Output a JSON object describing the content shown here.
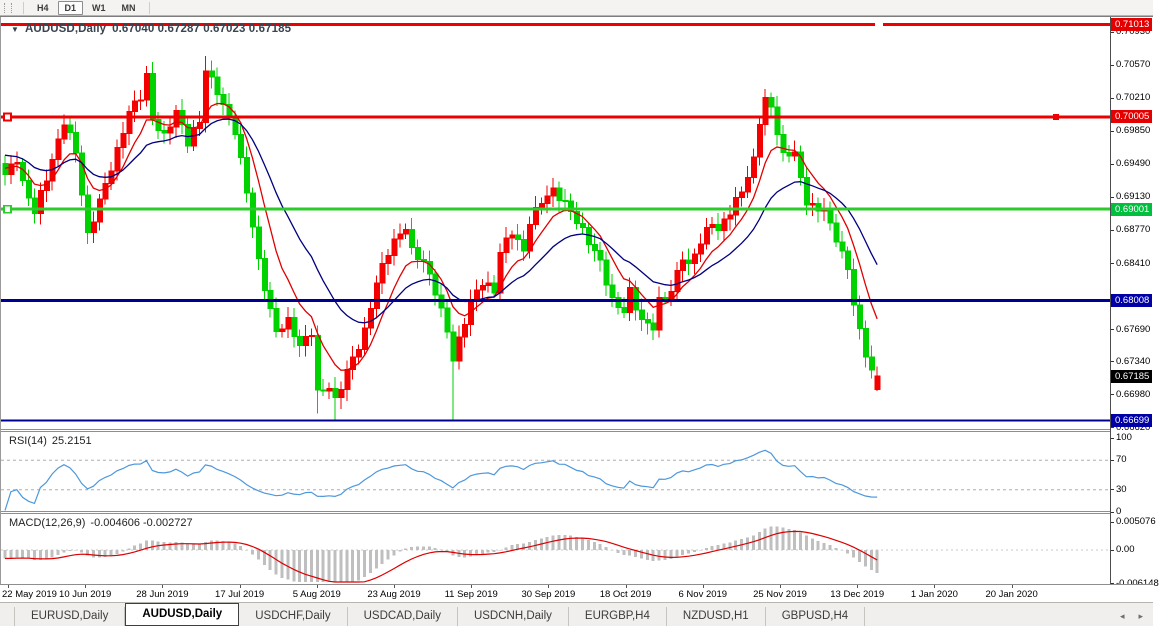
{
  "toolbar": {
    "buttons": [
      {
        "label": "H4",
        "active": false
      },
      {
        "label": "D1",
        "active": true
      },
      {
        "label": "W1",
        "active": false
      },
      {
        "label": "MN",
        "active": false
      }
    ]
  },
  "chart": {
    "dropdown_icon": "▼",
    "symbol_title": "AUDUSD,Daily",
    "ohlc_text": "0.67040 0.67287 0.67023 0.67185"
  },
  "chart_data": {
    "type": "candlestick",
    "symbol": "AUDUSD",
    "timeframe": "Daily",
    "ohlc_display": {
      "open": "0.67040",
      "high": "0.67287",
      "low": "0.67023",
      "close": "0.67185"
    },
    "colors": {
      "bull": "#f40000",
      "bear": "#00d200",
      "ma_fast": "#e00000",
      "ma_slow": "#000080",
      "hline_red": "#ee0000",
      "hline_green": "#2bcb2b",
      "hline_navy": "#000090",
      "badge_red": "#e40000",
      "badge_green": "#00be3e",
      "badge_navy": "#0000a6",
      "badge_black": "#000000",
      "rsi_line": "#4d97dc",
      "rsi_levels": "#adadad",
      "macd_hist": "#bfbfbf",
      "macd_signal": "#dd0000"
    },
    "price_axis_ticks": [
      "0.70930",
      "0.70570",
      "0.70210",
      "0.69850",
      "0.69490",
      "0.69130",
      "0.68770",
      "0.68410",
      "0.67690",
      "0.67340",
      "0.66980",
      "0.66620"
    ],
    "price_badges": [
      {
        "text": "0.71013",
        "price": 0.71013,
        "color": "badge_red"
      },
      {
        "text": "0.70005",
        "price": 0.70005,
        "color": "badge_red"
      },
      {
        "text": "0.69001",
        "price": 0.69001,
        "color": "badge_green"
      },
      {
        "text": "0.68008",
        "price": 0.68008,
        "color": "badge_navy"
      },
      {
        "text": "0.67185",
        "price": 0.67185,
        "color": "badge_black"
      },
      {
        "text": "0.66699",
        "price": 0.66699,
        "color": "badge_navy"
      }
    ],
    "horizontal_lines": [
      {
        "name": "resistance-0.71013",
        "price": 0.71013,
        "color": "hline_red",
        "width": 3,
        "left_handle": false,
        "mid_handle": true
      },
      {
        "name": "resistance-0.70005",
        "price": 0.70005,
        "color": "hline_red",
        "width": 3,
        "left_handle": true,
        "right_handle": true
      },
      {
        "name": "level-0.69001",
        "price": 0.69001,
        "color": "hline_green",
        "width": 3,
        "left_handle": true
      },
      {
        "name": "support-0.68008",
        "price": 0.68008,
        "color": "hline_navy",
        "width": 3,
        "left_handle": false
      },
      {
        "name": "support-0.66699",
        "price": 0.66699,
        "color": "hline_navy",
        "width": 2,
        "left_handle": false
      }
    ],
    "x_axis_labels": [
      "22 May 2019",
      "10 Jun 2019",
      "28 Jun 2019",
      "17 Jul 2019",
      "5 Aug 2019",
      "23 Aug 2019",
      "11 Sep 2019",
      "30 Sep 2019",
      "18 Oct 2019",
      "6 Nov 2019",
      "25 Nov 2019",
      "13 Dec 2019",
      "1 Jan 2020",
      "20 Jan 2020"
    ],
    "candles": {
      "count": 149,
      "close_anchors": [
        [
          0,
          0.6938
        ],
        [
          2,
          0.6955
        ],
        [
          3,
          0.6928
        ],
        [
          5,
          0.6898
        ],
        [
          8,
          0.6953
        ],
        [
          10,
          0.6996
        ],
        [
          12,
          0.6963
        ],
        [
          14,
          0.6871
        ],
        [
          16,
          0.6909
        ],
        [
          19,
          0.6963
        ],
        [
          21,
          0.7007
        ],
        [
          23,
          0.7023
        ],
        [
          24,
          0.7045
        ],
        [
          25,
          0.6998
        ],
        [
          27,
          0.6979
        ],
        [
          29,
          0.7007
        ],
        [
          31,
          0.6973
        ],
        [
          33,
          0.6996
        ],
        [
          34,
          0.7052
        ],
        [
          35,
          0.704
        ],
        [
          36,
          0.7029
        ],
        [
          37,
          0.7012
        ],
        [
          39,
          0.6985
        ],
        [
          41,
          0.692
        ],
        [
          43,
          0.6843
        ],
        [
          45,
          0.6789
        ],
        [
          46,
          0.6767
        ],
        [
          48,
          0.6778
        ],
        [
          50,
          0.6751
        ],
        [
          52,
          0.6767
        ],
        [
          53,
          0.67
        ],
        [
          55,
          0.6707
        ],
        [
          56,
          0.6691
        ],
        [
          58,
          0.6724
        ],
        [
          60,
          0.6751
        ],
        [
          61,
          0.6767
        ],
        [
          63,
          0.6821
        ],
        [
          65,
          0.6854
        ],
        [
          66,
          0.6865
        ],
        [
          68,
          0.6881
        ],
        [
          69,
          0.6854
        ],
        [
          71,
          0.6843
        ],
        [
          73,
          0.6811
        ],
        [
          75,
          0.6767
        ],
        [
          76,
          0.6737
        ],
        [
          77,
          0.6757
        ],
        [
          79,
          0.68
        ],
        [
          81,
          0.6821
        ],
        [
          83,
          0.6811
        ],
        [
          84,
          0.6854
        ],
        [
          86,
          0.6876
        ],
        [
          88,
          0.6854
        ],
        [
          89,
          0.6887
        ],
        [
          91,
          0.6909
        ],
        [
          93,
          0.692
        ],
        [
          94,
          0.6914
        ],
        [
          96,
          0.6898
        ],
        [
          98,
          0.6876
        ],
        [
          99,
          0.6865
        ],
        [
          101,
          0.6843
        ],
        [
          103,
          0.68
        ],
        [
          105,
          0.6789
        ],
        [
          106,
          0.6811
        ],
        [
          108,
          0.6778
        ],
        [
          110,
          0.6772
        ],
        [
          111,
          0.68
        ],
        [
          113,
          0.6811
        ],
        [
          115,
          0.6849
        ],
        [
          116,
          0.6838
        ],
        [
          118,
          0.6865
        ],
        [
          120,
          0.6887
        ],
        [
          121,
          0.6876
        ],
        [
          123,
          0.6898
        ],
        [
          125,
          0.692
        ],
        [
          127,
          0.6953
        ],
        [
          128,
          0.6996
        ],
        [
          129,
          0.702
        ],
        [
          130,
          0.701
        ],
        [
          131,
          0.6985
        ],
        [
          132,
          0.6958
        ],
        [
          134,
          0.6963
        ],
        [
          135,
          0.6931
        ],
        [
          136,
          0.6909
        ],
        [
          138,
          0.6898
        ],
        [
          139,
          0.6903
        ],
        [
          140,
          0.6881
        ],
        [
          142,
          0.6854
        ],
        [
          143,
          0.6832
        ],
        [
          144,
          0.68
        ],
        [
          145,
          0.6767
        ],
        [
          146,
          0.674
        ],
        [
          147,
          0.6727
        ],
        [
          148,
          0.67185
        ]
      ],
      "overrides": {
        "24": {
          "h": 0.7056
        },
        "34": {
          "h": 0.7067
        },
        "53": {
          "l": 0.6678
        },
        "56": {
          "l": 0.6669
        },
        "76": {
          "l": 0.6671
        },
        "129": {
          "h": 0.7031
        },
        "148": {
          "o": 0.6704,
          "h": 0.67287,
          "l": 0.67023,
          "c": 0.67185
        }
      }
    },
    "moving_averages": [
      {
        "period": 8,
        "color": "ma_fast"
      },
      {
        "period": 20,
        "color": "ma_slow"
      }
    ],
    "rsi": {
      "label": "RSI(14)",
      "value": "25.2151",
      "period": 14,
      "levels": [
        70,
        30
      ],
      "scale_ticks": [
        "100",
        "70",
        "30",
        "0"
      ]
    },
    "macd": {
      "label": "MACD(12,26,9)",
      "values": "-0.004606 -0.002727",
      "fast": 12,
      "slow": 26,
      "signal": 9,
      "scale_ticks": [
        "0.005076",
        "0.00",
        "-0.006148"
      ]
    }
  },
  "tabs": {
    "items": [
      {
        "label": "EURUSD,Daily",
        "active": false
      },
      {
        "label": "AUDUSD,Daily",
        "active": true
      },
      {
        "label": "USDCHF,Daily",
        "active": false
      },
      {
        "label": "USDCAD,Daily",
        "active": false
      },
      {
        "label": "USDCNH,Daily",
        "active": false
      },
      {
        "label": "EURGBP,H4",
        "active": false
      },
      {
        "label": "NZDUSD,H1",
        "active": false
      },
      {
        "label": "GBPUSD,H4",
        "active": false
      }
    ],
    "scroll_left": "◂",
    "scroll_right": "▸"
  }
}
